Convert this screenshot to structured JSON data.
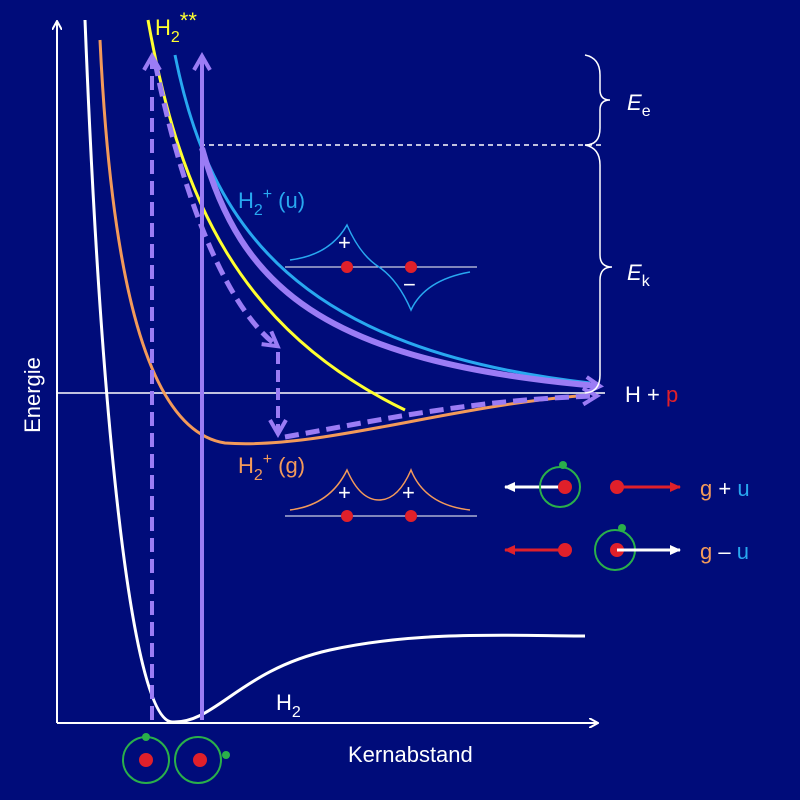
{
  "axes": {
    "y_label": "Energie",
    "x_label": "Kernabstand"
  },
  "labels": {
    "h2_double_star": {
      "base": "H",
      "sub": "2",
      "sup": "**"
    },
    "h2_plus_u": {
      "base": "H",
      "sub": "2",
      "sup": "+",
      "suffix": "(u)"
    },
    "h2_plus_g": {
      "base": "H",
      "sub": "2",
      "sup": "+",
      "suffix": "(g)"
    },
    "h2": {
      "base": "H",
      "sub": "2"
    },
    "energy_e": {
      "base": "E",
      "sub": "e"
    },
    "energy_k": {
      "base": "E",
      "sub": "k"
    },
    "dissociation": {
      "left": "H +",
      "right": "p"
    },
    "g_plus_u": {
      "g": "g",
      "op": "+",
      "u": "u"
    },
    "g_minus_u": {
      "g": "g",
      "op": "–",
      "u": "u"
    }
  },
  "wavefunctions": {
    "u": {
      "plus": "+",
      "minus": "−"
    },
    "g": {
      "plus_left": "+",
      "plus_right": "+"
    }
  }
}
